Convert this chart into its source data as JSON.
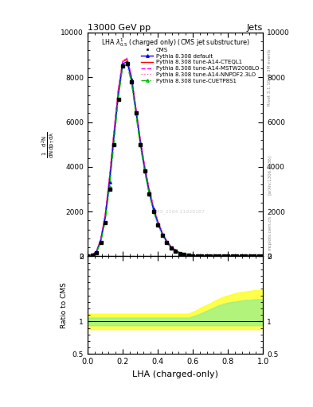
{
  "title_top": "13000 GeV pp",
  "title_right": "Jets",
  "plot_title": "LHA $\\lambda^{1}_{0.5}$ (charged only) (CMS jet substructure)",
  "xlabel": "LHA (charged-only)",
  "ylabel_ratio": "Ratio to CMS",
  "watermark": "CMS_2504.11920187",
  "cms_color": "#000000",
  "blue_color": "#0000FF",
  "red_color": "#FF0000",
  "magenta_dashed_color": "#FF00FF",
  "pink_dotted_color": "#FF69B4",
  "green_dashdot_color": "#00BB00",
  "lha_x": [
    0.0,
    0.025,
    0.05,
    0.075,
    0.1,
    0.125,
    0.15,
    0.175,
    0.2,
    0.225,
    0.25,
    0.275,
    0.3,
    0.325,
    0.35,
    0.375,
    0.4,
    0.425,
    0.45,
    0.475,
    0.5,
    0.525,
    0.55,
    0.575,
    0.6,
    0.625,
    0.65,
    0.675,
    0.7,
    0.725,
    0.75,
    0.775,
    0.8,
    0.825,
    0.85,
    0.875,
    0.9,
    0.925,
    0.95,
    0.975,
    1.0
  ],
  "cms_y": [
    0,
    50,
    150,
    600,
    1500,
    3000,
    5000,
    7000,
    8500,
    8600,
    7800,
    6400,
    5000,
    3800,
    2800,
    2000,
    1400,
    950,
    620,
    380,
    230,
    130,
    70,
    35,
    16,
    7,
    3,
    1.5,
    0.8,
    0.4,
    0.2,
    0.1,
    0.05,
    0.02,
    0.01,
    0.005,
    0.002,
    0.001,
    0.0005,
    0.0002,
    0
  ],
  "blue_y": [
    0,
    60,
    180,
    700,
    1700,
    3300,
    5300,
    7200,
    8600,
    8700,
    7900,
    6500,
    5100,
    3900,
    2900,
    2100,
    1500,
    1010,
    660,
    410,
    250,
    145,
    78,
    40,
    19,
    8.5,
    3.5,
    1.7,
    0.9,
    0.45,
    0.22,
    0.11,
    0.055,
    0.025,
    0.012,
    0.006,
    0.003,
    0.001,
    0.0006,
    0.0002,
    0
  ],
  "red_y": [
    0,
    65,
    195,
    750,
    1800,
    3500,
    5500,
    7400,
    8700,
    8800,
    8000,
    6600,
    5200,
    4000,
    3000,
    2200,
    1550,
    1050,
    690,
    430,
    265,
    152,
    82,
    42,
    20,
    9,
    3.8,
    1.8,
    0.95,
    0.48,
    0.24,
    0.12,
    0.06,
    0.027,
    0.013,
    0.007,
    0.003,
    0.0013,
    0.0006,
    0.0002,
    0
  ],
  "magenta_dashed_y": [
    0,
    68,
    200,
    760,
    1820,
    3530,
    5540,
    7440,
    8740,
    8840,
    8040,
    6640,
    5240,
    4040,
    3040,
    2240,
    1580,
    1070,
    700,
    440,
    270,
    156,
    84,
    43,
    21,
    9.2,
    3.9,
    1.85,
    0.97,
    0.49,
    0.245,
    0.122,
    0.061,
    0.028,
    0.013,
    0.007,
    0.003,
    0.0013,
    0.0006,
    0.0002,
    0
  ],
  "pink_dotted_y": [
    0,
    70,
    205,
    770,
    1840,
    3550,
    5560,
    7460,
    8760,
    8860,
    8060,
    6660,
    5260,
    4060,
    3060,
    2260,
    1600,
    1080,
    710,
    445,
    273,
    158,
    85,
    44,
    21.5,
    9.4,
    4,
    1.9,
    0.98,
    0.5,
    0.25,
    0.125,
    0.062,
    0.029,
    0.014,
    0.007,
    0.003,
    0.0014,
    0.0006,
    0.00025,
    0
  ],
  "green_y": [
    0,
    52,
    158,
    630,
    1560,
    3100,
    5080,
    7080,
    8480,
    8580,
    7780,
    6380,
    4980,
    3800,
    2820,
    2040,
    1440,
    970,
    630,
    390,
    235,
    133,
    71,
    36,
    17,
    7.5,
    3.1,
    1.5,
    0.78,
    0.39,
    0.195,
    0.098,
    0.049,
    0.022,
    0.011,
    0.005,
    0.0025,
    0.001,
    0.0005,
    0.0002,
    0
  ],
  "ylim_main": [
    0,
    10000
  ],
  "yticks_main": [
    0,
    2000,
    4000,
    6000,
    8000,
    10000
  ],
  "ytick_labels_main": [
    "0",
    "2000",
    "4000",
    "6000",
    "8000",
    "10000"
  ],
  "xlim": [
    0,
    1
  ],
  "ylim_ratio": [
    0.5,
    2.0
  ],
  "yticks_ratio": [
    0.5,
    1,
    2
  ],
  "ytick_labels_ratio": [
    "0.5",
    "1",
    "2"
  ],
  "band_color_yellow": "#FFFF00",
  "band_color_green": "#90EE90",
  "band_alpha": 0.7,
  "ratio_band_yellow_y1": [
    0.88,
    0.88,
    0.88,
    0.88,
    0.88,
    0.88,
    0.88,
    0.88,
    0.88,
    0.88,
    0.88,
    0.88,
    0.88,
    0.88,
    0.88,
    0.88,
    0.88,
    0.88,
    0.88,
    0.88,
    0.88,
    0.88,
    0.88,
    0.88,
    0.88,
    0.88,
    0.88,
    0.88,
    0.88,
    0.88,
    0.88,
    0.88,
    0.88,
    0.88,
    0.88,
    0.88,
    0.88,
    0.88,
    0.88,
    0.88,
    0.88
  ],
  "ratio_band_yellow_y2": [
    1.12,
    1.12,
    1.12,
    1.12,
    1.12,
    1.12,
    1.12,
    1.12,
    1.12,
    1.12,
    1.12,
    1.12,
    1.12,
    1.12,
    1.12,
    1.12,
    1.12,
    1.12,
    1.12,
    1.12,
    1.12,
    1.12,
    1.12,
    1.12,
    1.15,
    1.18,
    1.22,
    1.25,
    1.28,
    1.32,
    1.35,
    1.38,
    1.4,
    1.42,
    1.44,
    1.45,
    1.46,
    1.47,
    1.48,
    1.48,
    1.48
  ],
  "ratio_band_green_y1": [
    0.94,
    0.94,
    0.94,
    0.94,
    0.94,
    0.94,
    0.94,
    0.94,
    0.94,
    0.94,
    0.94,
    0.94,
    0.94,
    0.94,
    0.94,
    0.94,
    0.94,
    0.94,
    0.94,
    0.94,
    0.94,
    0.94,
    0.94,
    0.94,
    0.94,
    0.94,
    0.94,
    0.94,
    0.94,
    0.94,
    0.94,
    0.94,
    0.94,
    0.94,
    0.94,
    0.94,
    0.94,
    0.94,
    0.94,
    0.94,
    0.94
  ],
  "ratio_band_green_y2": [
    1.06,
    1.06,
    1.06,
    1.06,
    1.06,
    1.06,
    1.06,
    1.06,
    1.06,
    1.06,
    1.06,
    1.06,
    1.06,
    1.06,
    1.06,
    1.06,
    1.06,
    1.06,
    1.06,
    1.06,
    1.06,
    1.06,
    1.06,
    1.06,
    1.08,
    1.1,
    1.13,
    1.16,
    1.19,
    1.22,
    1.25,
    1.27,
    1.29,
    1.3,
    1.31,
    1.32,
    1.33,
    1.33,
    1.34,
    1.34,
    1.34
  ]
}
